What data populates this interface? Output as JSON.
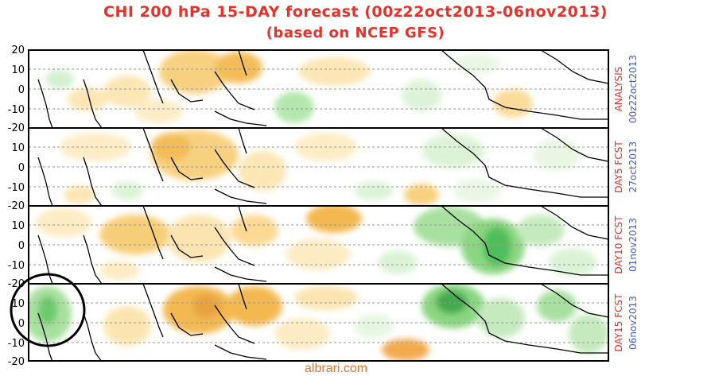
{
  "title_line1": "CHI 200 hPa 15-DAY forecast (00z22oct2013-06nov2013)",
  "title_line2": "(based on NCEP GFS)",
  "y_ticks": [
    "20",
    "10",
    "0",
    "-10",
    "-20"
  ],
  "panels": [
    {
      "label": "ANALYSIS",
      "date": "00z22oct2013"
    },
    {
      "label": "DAY5 FCST",
      "date": "27oct2013"
    },
    {
      "label": "DAY10 FCST",
      "date": "01nov2013"
    },
    {
      "label": "DAY15 FCST",
      "date": "06nov2013"
    }
  ],
  "watermark": "albrari.com",
  "colors": {
    "title": "#e8312a",
    "date_text": "#3a5bd6",
    "positive_shading": "#f2b13c",
    "negative_shading": "#3cb84a",
    "highlight_circle": "#000000"
  }
}
